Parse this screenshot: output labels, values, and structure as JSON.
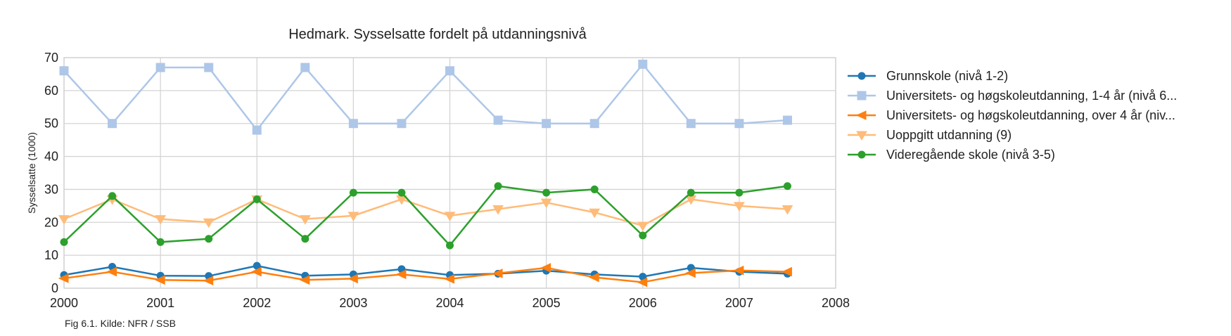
{
  "caption": "Fig 6.1. Kilde: NFR / SSB",
  "chart_data": {
    "type": "line",
    "title": "Hedmark. Sysselsatte fordelt på utdanningsnivå",
    "xlabel": "",
    "ylabel": "Sysselsatte (1000)",
    "xlim": [
      2000,
      2008
    ],
    "ylim": [
      0,
      70
    ],
    "x_ticks": [
      2000,
      2001,
      2002,
      2003,
      2004,
      2005,
      2006,
      2007,
      2008
    ],
    "y_ticks": [
      0,
      10,
      20,
      30,
      40,
      50,
      60,
      70
    ],
    "grid": true,
    "legend_position": "right",
    "x": [
      2000,
      2000.5,
      2001,
      2001.5,
      2002,
      2002.5,
      2003,
      2003.5,
      2004,
      2004.5,
      2005,
      2005.5,
      2006,
      2006.5,
      2007,
      2007.5
    ],
    "series": [
      {
        "name": "Grunnskole (nivå 1-2)",
        "color": "#1f77b4",
        "marker": "circle",
        "values": [
          4,
          6.5,
          3.8,
          3.7,
          6.8,
          3.8,
          4.2,
          5.8,
          4.0,
          4.4,
          5.3,
          4.2,
          3.5,
          6.2,
          5.0,
          4.4
        ]
      },
      {
        "name": "Universitets- og høgskoleutdanning, 1-4 år (nivå 6...",
        "color": "#aec7e8",
        "marker": "square",
        "values": [
          66,
          50,
          67,
          67,
          48,
          67,
          50,
          50,
          66,
          51,
          50,
          50,
          68,
          50,
          50,
          51
        ]
      },
      {
        "name": "Universitets- og høgskoleutdanning, over 4 år (niv...",
        "color": "#ff7f0e",
        "marker": "triangle-left",
        "values": [
          3,
          5,
          2.5,
          2.3,
          5,
          2.5,
          2.9,
          4.2,
          2.8,
          4.5,
          6.2,
          3.3,
          1.8,
          4.6,
          5.4,
          5.0
        ]
      },
      {
        "name": "Uoppgitt utdanning (9)",
        "color": "#ffbb78",
        "marker": "triangle-down",
        "values": [
          21,
          27,
          21,
          20,
          27,
          21,
          22,
          27,
          22,
          24,
          26,
          23,
          19,
          27,
          25,
          24
        ]
      },
      {
        "name": "Videregående skole (nivå 3-5)",
        "color": "#2ca02c",
        "marker": "circle",
        "values": [
          14,
          28,
          14,
          15,
          27,
          15,
          29,
          29,
          13,
          31,
          29,
          30,
          16,
          29,
          29,
          31
        ]
      }
    ]
  }
}
